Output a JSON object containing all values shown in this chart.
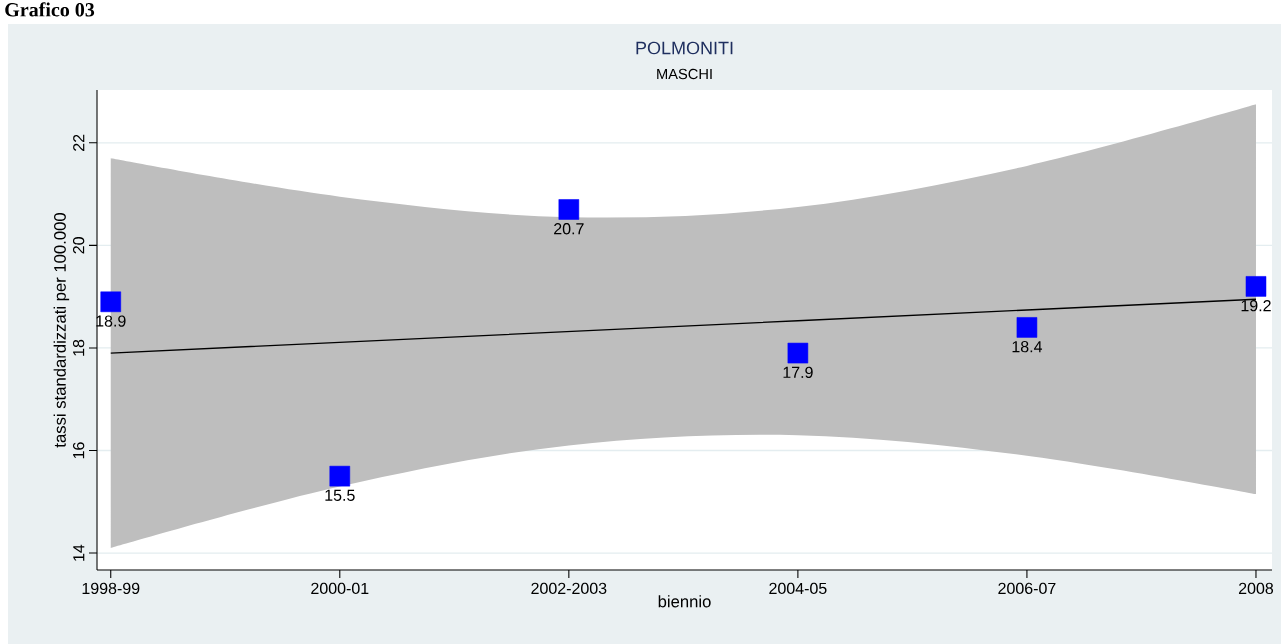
{
  "chart_data": {
    "type": "scatter",
    "title": "POLMONITI",
    "subtitle": "MASCHI",
    "xlabel": "biennio",
    "ylabel": "tassi standardizzati per 100.000",
    "annotations": [
      "Grafico 03"
    ],
    "categories": [
      "1998-99",
      "2000-01",
      "2002-2003",
      "2004-05",
      "2006-07",
      "2008"
    ],
    "series": [
      {
        "type": "line",
        "color": "#000000",
        "values": [
          17.9,
          18.11,
          18.32,
          18.53,
          18.74,
          18.95
        ],
        "lower": [
          14.1,
          15.3,
          16.1,
          16.3,
          15.9,
          15.15
        ],
        "upper": [
          21.7,
          20.95,
          20.55,
          20.75,
          21.55,
          22.75
        ]
      },
      {
        "color": "#0000ff",
        "marker": "square",
        "values": [
          18.9,
          15.5,
          20.7,
          17.9,
          18.4,
          19.2
        ],
        "value_labels": [
          "18.9",
          "15.5",
          "20.7",
          "17.9",
          "18.4",
          "19.2"
        ]
      }
    ],
    "ylim": [
      13.67,
      23.03
    ],
    "yticks": [
      14,
      16,
      18,
      20,
      22
    ],
    "grid": "y"
  }
}
